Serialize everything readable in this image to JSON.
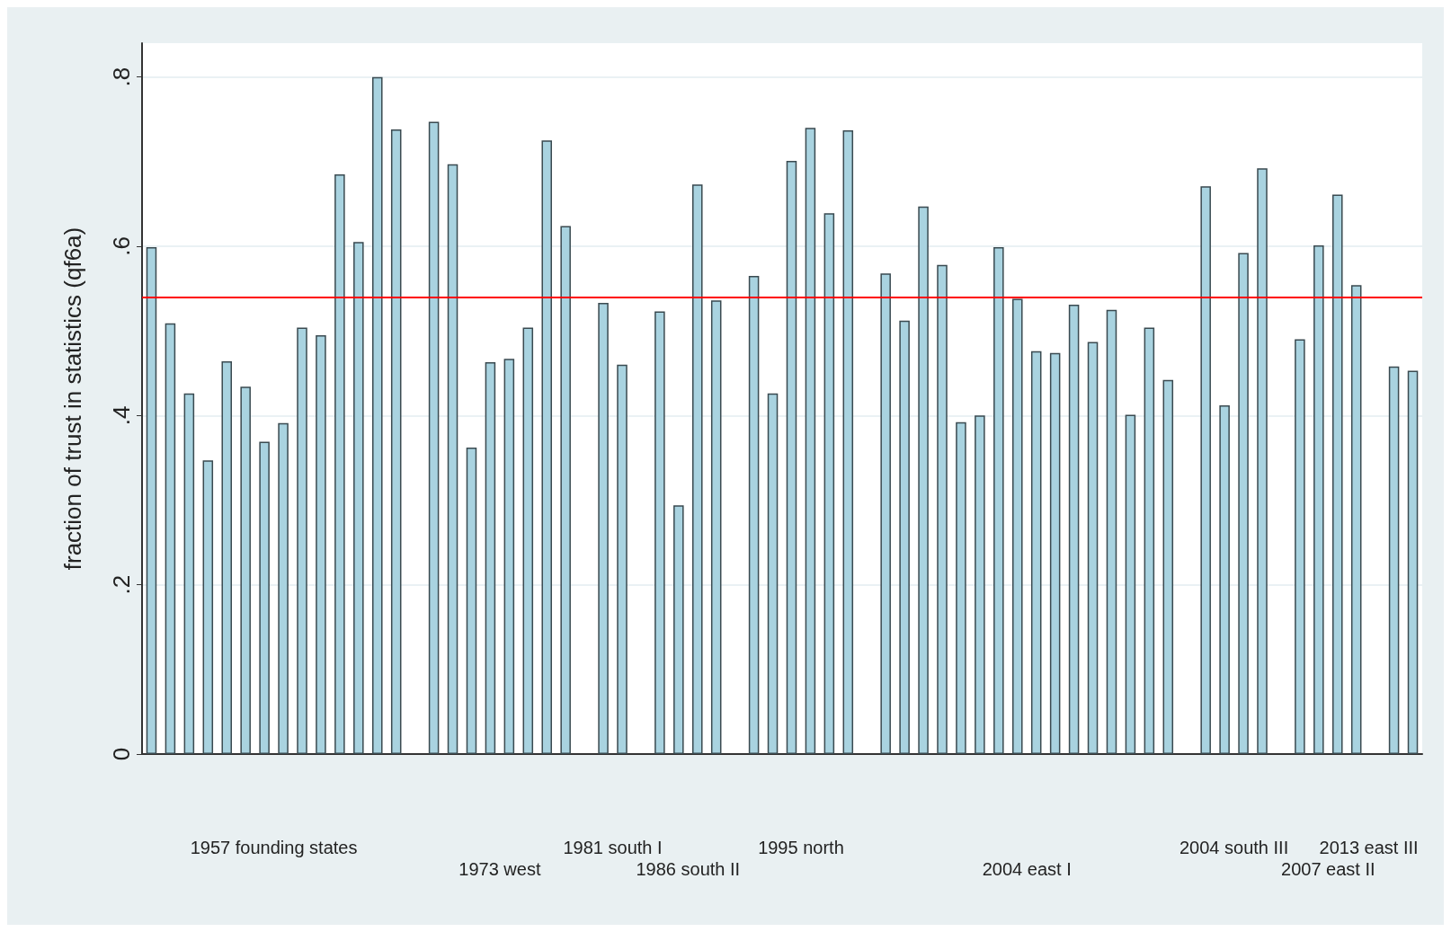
{
  "chart_data": {
    "type": "bar",
    "ylabel": "fraction of trust in statistics (qf6a)",
    "categories": [
      null,
      null,
      null,
      null,
      null,
      null,
      null,
      null,
      null,
      null,
      null,
      null,
      null,
      null,
      null,
      null,
      null,
      null,
      null,
      null,
      null,
      null,
      null,
      null,
      null,
      null,
      null,
      null,
      null,
      null,
      null,
      null,
      null,
      null,
      null,
      null,
      null,
      null,
      null,
      null,
      null,
      null,
      null,
      null,
      null,
      null,
      null,
      null,
      null,
      null,
      null,
      null,
      null,
      null,
      null,
      null,
      null,
      null,
      null,
      null,
      null,
      null,
      null,
      null,
      null,
      null,
      null,
      null
    ],
    "values": [
      0.599,
      0.509,
      0.426,
      0.347,
      0.464,
      0.434,
      0.369,
      0.391,
      0.504,
      0.495,
      0.685,
      0.605,
      0.8,
      0.738,
      null,
      0.747,
      0.697,
      0.362,
      0.463,
      0.467,
      0.504,
      0.725,
      0.624,
      null,
      0.533,
      0.46,
      null,
      0.523,
      0.294,
      0.673,
      0.536,
      null,
      0.565,
      0.426,
      0.701,
      0.74,
      0.639,
      0.737,
      null,
      0.568,
      0.512,
      0.647,
      0.578,
      0.392,
      0.4,
      0.599,
      0.538,
      0.476,
      0.474,
      0.531,
      0.487,
      0.525,
      0.401,
      0.504,
      0.442,
      null,
      0.671,
      0.412,
      0.592,
      0.692,
      null,
      0.49,
      0.601,
      0.661,
      0.554,
      null,
      0.458,
      0.453
    ],
    "color": "#a9d3e0",
    "ylim": [
      0,
      0.84
    ],
    "yticks": [
      0,
      {
        "value": 0.2,
        "label": ".2"
      },
      {
        "value": 0.4,
        "label": ".4"
      },
      {
        "value": 0.6,
        "label": ".6"
      },
      {
        "value": 0.8,
        "label": ".8"
      }
    ],
    "grid": "y",
    "ref_lines": [
      {
        "axis": "y",
        "value": 0.54,
        "color": "#ff0000"
      }
    ],
    "annotations": [
      "1957 founding states",
      "1973 west",
      "1981 south I",
      "1986 south II",
      "1995 north",
      "2004 east I",
      "2004 south III",
      "2007 east II",
      "2013 east III"
    ]
  }
}
